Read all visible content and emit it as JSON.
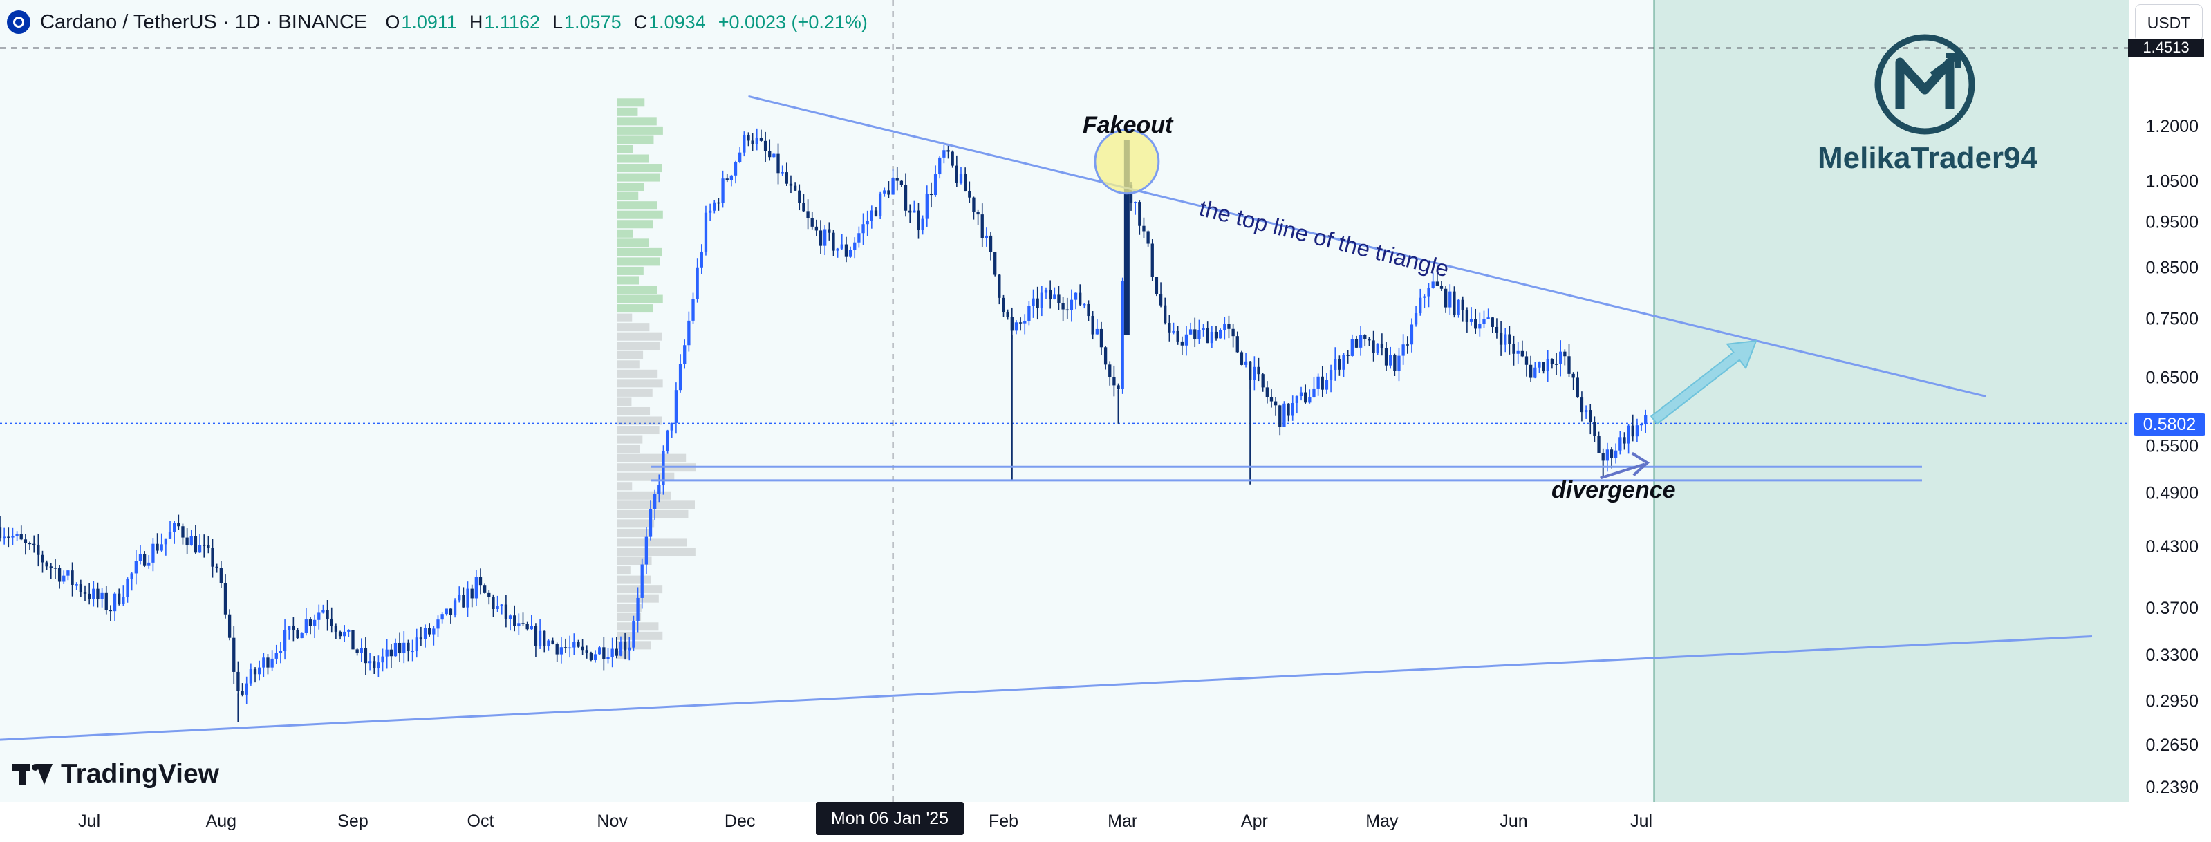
{
  "header": {
    "symbol": "Cardano / TetherUS · 1D · BINANCE",
    "open_key": "O",
    "open": "1.0911",
    "high_key": "H",
    "high": "1.1162",
    "low_key": "L",
    "low": "1.0575",
    "close_key": "C",
    "close": "1.0934",
    "change": "+0.0023 (+0.21%)"
  },
  "currency_button": "USDT",
  "high_marker": "1.4513",
  "last_price_label": "0.5802",
  "crosshair_date": "Mon 06 Jan '25",
  "brand": {
    "tradingview": "TradingView",
    "author": "MelikaTrader94"
  },
  "annotations": {
    "fakeout": "Fakeout",
    "triangle_line": "the top line of the triangle",
    "divergence": "divergence"
  },
  "colors": {
    "up": "#2962ff",
    "down": "#0d2f6e",
    "trendline": "#7b9cf0",
    "projection_zone": "#d5ebe6",
    "arrow": "#8fd3e6",
    "fakeout_circle": "#f5f08c",
    "accent_green": "#089981"
  },
  "chart_data": {
    "type": "candlestick",
    "scale": "log",
    "interval": "1D",
    "x_tick_labels": [
      "Jul",
      "Aug",
      "Sep",
      "Oct",
      "Nov",
      "Dec",
      "Feb",
      "Mar",
      "Apr",
      "May",
      "Jun",
      "Jul"
    ],
    "x_tick_dates": [
      "2024-07-01",
      "2024-08-01",
      "2024-09-01",
      "2024-10-01",
      "2024-11-01",
      "2024-12-01",
      "2025-02-01",
      "2025-03-01",
      "2025-04-01",
      "2025-05-01",
      "2025-06-01",
      "2025-07-01"
    ],
    "y_ticks": [
      1.2,
      1.05,
      0.95,
      0.85,
      0.75,
      0.65,
      0.55,
      0.49,
      0.43,
      0.37,
      0.33,
      0.295,
      0.265,
      0.239
    ],
    "y_tick_labels": [
      "1.2000",
      "1.0500",
      "0.9500",
      "0.8500",
      "0.7500",
      "0.6500",
      "0.5500",
      "0.4900",
      "0.4300",
      "0.3700",
      "0.3300",
      "0.2950",
      "0.2650",
      "0.2390"
    ],
    "ylim": [
      0.235,
      1.46
    ],
    "xlim": [
      "2024-06-10",
      "2025-10-15"
    ],
    "last_price": 0.5802,
    "high_line": 1.4513,
    "price_path": [
      [
        "2024-06-10",
        0.45
      ],
      [
        "2024-06-25",
        0.4
      ],
      [
        "2024-07-06",
        0.37
      ],
      [
        "2024-07-14",
        0.42
      ],
      [
        "2024-07-22",
        0.45
      ],
      [
        "2024-07-31",
        0.41
      ],
      [
        "2024-08-05",
        0.3
      ],
      [
        "2024-08-15",
        0.34
      ],
      [
        "2024-08-25",
        0.37
      ],
      [
        "2024-09-05",
        0.32
      ],
      [
        "2024-09-20",
        0.35
      ],
      [
        "2024-09-30",
        0.39
      ],
      [
        "2024-10-10",
        0.35
      ],
      [
        "2024-10-25",
        0.33
      ],
      [
        "2024-11-05",
        0.34
      ],
      [
        "2024-11-10",
        0.46
      ],
      [
        "2024-11-16",
        0.62
      ],
      [
        "2024-11-23",
        0.95
      ],
      [
        "2024-12-03",
        1.18
      ],
      [
        "2024-12-10",
        1.08
      ],
      [
        "2024-12-18",
        0.93
      ],
      [
        "2024-12-26",
        0.88
      ],
      [
        "2025-01-06",
        1.05
      ],
      [
        "2025-01-12",
        0.95
      ],
      [
        "2025-01-18",
        1.12
      ],
      [
        "2025-01-26",
        0.97
      ],
      [
        "2025-02-03",
        0.72
      ],
      [
        "2025-02-10",
        0.79
      ],
      [
        "2025-02-20",
        0.78
      ],
      [
        "2025-02-28",
        0.63
      ],
      [
        "2025-03-02",
        1.05
      ],
      [
        "2025-03-05",
        0.96
      ],
      [
        "2025-03-12",
        0.71
      ],
      [
        "2025-03-25",
        0.73
      ],
      [
        "2025-04-07",
        0.59
      ],
      [
        "2025-04-15",
        0.63
      ],
      [
        "2025-04-25",
        0.71
      ],
      [
        "2025-05-05",
        0.67
      ],
      [
        "2025-05-12",
        0.82
      ],
      [
        "2025-05-20",
        0.76
      ],
      [
        "2025-05-28",
        0.73
      ],
      [
        "2025-06-05",
        0.66
      ],
      [
        "2025-06-12",
        0.69
      ],
      [
        "2025-06-22",
        0.53
      ],
      [
        "2025-06-28",
        0.57
      ],
      [
        "2025-07-02",
        0.58
      ]
    ],
    "trendlines": [
      {
        "name": "the top line of the triangle",
        "from": [
          "2024-12-03",
          1.29
        ],
        "to": [
          "2025-09-20",
          0.62
        ]
      },
      {
        "name": "ascending support",
        "from": [
          "2024-06-10",
          0.268
        ],
        "to": [
          "2025-10-15",
          0.345
        ]
      }
    ],
    "support_zone": {
      "from": "2024-11-10",
      "to": "2025-09-05",
      "upper": 0.522,
      "lower": 0.505
    },
    "projection_zone_from": "2025-07-04",
    "fakeout_marker": [
      "2025-03-02",
      1.1
    ],
    "divergence_marker": [
      "2025-06-22",
      0.52
    ],
    "target_arrow": {
      "from": [
        "2025-07-04",
        0.585
      ],
      "to": [
        "2025-07-28",
        0.71
      ]
    }
  }
}
